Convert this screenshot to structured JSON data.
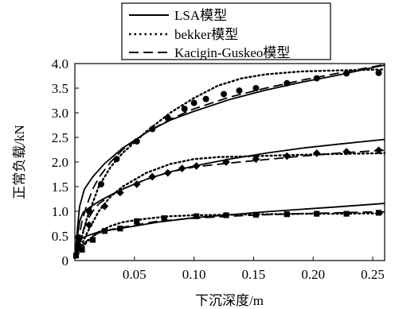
{
  "chart_data": {
    "type": "line",
    "xlabel": "下沉深度/m",
    "ylabel": "正常负载/kN",
    "xlim": [
      0,
      0.26
    ],
    "ylim": [
      0,
      4.0
    ],
    "xticks": [
      {
        "value": 0.05,
        "label": "0.05"
      },
      {
        "value": 0.1,
        "label": "0.10"
      },
      {
        "value": 0.15,
        "label": "0.15"
      },
      {
        "value": 0.2,
        "label": "0.20"
      },
      {
        "value": 0.25,
        "label": "0.25"
      }
    ],
    "yticks": [
      {
        "value": 0,
        "label": "0"
      },
      {
        "value": 0.5,
        "label": "0.5"
      },
      {
        "value": 1.0,
        "label": "1.0"
      },
      {
        "value": 1.5,
        "label": "1.5"
      },
      {
        "value": 2.0,
        "label": "2.0"
      },
      {
        "value": 2.5,
        "label": "2.5"
      },
      {
        "value": 3.0,
        "label": "3.0"
      },
      {
        "value": 3.5,
        "label": "3.5"
      },
      {
        "value": 4.0,
        "label": "4.0"
      }
    ],
    "grid": false,
    "legend": {
      "placement": "top",
      "entries": [
        {
          "label": "LSA模型",
          "style": "solid"
        },
        {
          "label": "bekker模型",
          "style": "dotted"
        },
        {
          "label": "Kacigin-Guskeo模型",
          "style": "dashed"
        }
      ]
    },
    "model_curves": [
      {
        "model": "LSA模型",
        "style": "solid",
        "group": "high",
        "points": [
          [
            0,
            0.05
          ],
          [
            0.002,
            0.6
          ],
          [
            0.004,
            1.1
          ],
          [
            0.008,
            1.45
          ],
          [
            0.015,
            1.7
          ],
          [
            0.025,
            1.97
          ],
          [
            0.04,
            2.28
          ],
          [
            0.06,
            2.6
          ],
          [
            0.08,
            2.85
          ],
          [
            0.1,
            3.03
          ],
          [
            0.13,
            3.27
          ],
          [
            0.16,
            3.46
          ],
          [
            0.19,
            3.62
          ],
          [
            0.22,
            3.76
          ],
          [
            0.26,
            3.97
          ]
        ]
      },
      {
        "model": "bekker模型",
        "style": "dotted",
        "group": "high",
        "points": [
          [
            0,
            0.05
          ],
          [
            0.005,
            0.4
          ],
          [
            0.01,
            0.85
          ],
          [
            0.02,
            1.5
          ],
          [
            0.03,
            1.9
          ],
          [
            0.04,
            2.18
          ],
          [
            0.05,
            2.4
          ],
          [
            0.06,
            2.62
          ],
          [
            0.08,
            3.0
          ],
          [
            0.1,
            3.3
          ],
          [
            0.12,
            3.55
          ],
          [
            0.14,
            3.7
          ],
          [
            0.16,
            3.78
          ],
          [
            0.19,
            3.84
          ],
          [
            0.22,
            3.86
          ],
          [
            0.26,
            3.88
          ]
        ]
      },
      {
        "model": "Kacigin-Guskeo模型",
        "style": "dashed",
        "group": "high",
        "points": [
          [
            0,
            0.05
          ],
          [
            0.003,
            0.4
          ],
          [
            0.006,
            0.8
          ],
          [
            0.01,
            1.12
          ],
          [
            0.015,
            1.45
          ],
          [
            0.02,
            1.68
          ],
          [
            0.03,
            2.0
          ],
          [
            0.04,
            2.25
          ],
          [
            0.06,
            2.6
          ],
          [
            0.08,
            2.87
          ],
          [
            0.1,
            3.08
          ],
          [
            0.13,
            3.32
          ],
          [
            0.16,
            3.5
          ],
          [
            0.19,
            3.66
          ],
          [
            0.22,
            3.8
          ],
          [
            0.26,
            3.98
          ]
        ]
      },
      {
        "model": "LSA模型",
        "style": "solid",
        "group": "mid",
        "points": [
          [
            0,
            0.05
          ],
          [
            0.002,
            0.45
          ],
          [
            0.004,
            0.8
          ],
          [
            0.007,
            0.98
          ],
          [
            0.012,
            1.07
          ],
          [
            0.02,
            1.2
          ],
          [
            0.03,
            1.33
          ],
          [
            0.04,
            1.45
          ],
          [
            0.06,
            1.65
          ],
          [
            0.08,
            1.8
          ],
          [
            0.1,
            1.92
          ],
          [
            0.13,
            2.06
          ],
          [
            0.16,
            2.18
          ],
          [
            0.19,
            2.28
          ],
          [
            0.22,
            2.36
          ],
          [
            0.26,
            2.46
          ]
        ]
      },
      {
        "model": "bekker模型",
        "style": "dotted",
        "group": "mid",
        "points": [
          [
            0,
            0.05
          ],
          [
            0.005,
            0.28
          ],
          [
            0.01,
            0.55
          ],
          [
            0.02,
            1.0
          ],
          [
            0.03,
            1.3
          ],
          [
            0.04,
            1.5
          ],
          [
            0.06,
            1.78
          ],
          [
            0.08,
            1.96
          ],
          [
            0.1,
            2.06
          ],
          [
            0.12,
            2.1
          ],
          [
            0.15,
            2.12
          ],
          [
            0.18,
            2.14
          ],
          [
            0.21,
            2.16
          ],
          [
            0.26,
            2.18
          ]
        ]
      },
      {
        "model": "Kacigin-Guskeo模型",
        "style": "dashed",
        "group": "mid",
        "points": [
          [
            0,
            0.05
          ],
          [
            0.003,
            0.3
          ],
          [
            0.006,
            0.55
          ],
          [
            0.01,
            0.8
          ],
          [
            0.015,
            1.0
          ],
          [
            0.02,
            1.15
          ],
          [
            0.03,
            1.32
          ],
          [
            0.04,
            1.45
          ],
          [
            0.06,
            1.65
          ],
          [
            0.08,
            1.8
          ],
          [
            0.1,
            1.9
          ],
          [
            0.13,
            1.98
          ],
          [
            0.16,
            2.05
          ],
          [
            0.19,
            2.12
          ],
          [
            0.22,
            2.18
          ],
          [
            0.26,
            2.24
          ]
        ]
      },
      {
        "model": "LSA模型",
        "style": "solid",
        "group": "low",
        "points": [
          [
            0,
            0.05
          ],
          [
            0.003,
            0.35
          ],
          [
            0.006,
            0.45
          ],
          [
            0.01,
            0.5
          ],
          [
            0.02,
            0.58
          ],
          [
            0.03,
            0.62
          ],
          [
            0.05,
            0.7
          ],
          [
            0.07,
            0.78
          ],
          [
            0.1,
            0.87
          ],
          [
            0.13,
            0.93
          ],
          [
            0.16,
            0.99
          ],
          [
            0.19,
            1.04
          ],
          [
            0.22,
            1.09
          ],
          [
            0.26,
            1.16
          ]
        ]
      },
      {
        "model": "bekker模型",
        "style": "dotted",
        "group": "low",
        "points": [
          [
            0,
            0.05
          ],
          [
            0.005,
            0.2
          ],
          [
            0.01,
            0.38
          ],
          [
            0.02,
            0.58
          ],
          [
            0.03,
            0.7
          ],
          [
            0.04,
            0.78
          ],
          [
            0.06,
            0.85
          ],
          [
            0.08,
            0.9
          ],
          [
            0.1,
            0.92
          ],
          [
            0.13,
            0.93
          ],
          [
            0.16,
            0.94
          ],
          [
            0.19,
            0.95
          ],
          [
            0.22,
            0.95
          ],
          [
            0.26,
            0.96
          ]
        ]
      },
      {
        "model": "Kacigin-Guskeo模型",
        "style": "dashed",
        "group": "low",
        "points": [
          [
            0,
            0.05
          ],
          [
            0.003,
            0.2
          ],
          [
            0.006,
            0.3
          ],
          [
            0.01,
            0.4
          ],
          [
            0.015,
            0.5
          ],
          [
            0.02,
            0.56
          ],
          [
            0.03,
            0.63
          ],
          [
            0.05,
            0.72
          ],
          [
            0.07,
            0.8
          ],
          [
            0.1,
            0.86
          ],
          [
            0.13,
            0.9
          ],
          [
            0.16,
            0.93
          ],
          [
            0.19,
            0.95
          ],
          [
            0.22,
            0.97
          ],
          [
            0.26,
            0.99
          ]
        ]
      }
    ],
    "measured_points": [
      {
        "marker": "circle",
        "points": [
          [
            0.003,
            0.47
          ],
          [
            0.012,
            1.0
          ],
          [
            0.022,
            1.55
          ],
          [
            0.035,
            2.06
          ],
          [
            0.052,
            2.42
          ],
          [
            0.065,
            2.67
          ],
          [
            0.078,
            2.9
          ],
          [
            0.092,
            3.08
          ],
          [
            0.1,
            3.2
          ],
          [
            0.11,
            3.28
          ],
          [
            0.125,
            3.38
          ],
          [
            0.138,
            3.45
          ],
          [
            0.152,
            3.5
          ],
          [
            0.178,
            3.6
          ],
          [
            0.203,
            3.7
          ],
          [
            0.228,
            3.8
          ],
          [
            0.255,
            3.81
          ]
        ]
      },
      {
        "marker": "diamond",
        "points": [
          [
            0.003,
            0.32
          ],
          [
            0.012,
            0.72
          ],
          [
            0.025,
            1.1
          ],
          [
            0.038,
            1.38
          ],
          [
            0.052,
            1.55
          ],
          [
            0.065,
            1.7
          ],
          [
            0.078,
            1.78
          ],
          [
            0.09,
            1.87
          ],
          [
            0.102,
            1.92
          ],
          [
            0.127,
            2.0
          ],
          [
            0.152,
            2.06
          ],
          [
            0.178,
            2.12
          ],
          [
            0.203,
            2.18
          ],
          [
            0.228,
            2.21
          ],
          [
            0.255,
            2.24
          ]
        ]
      },
      {
        "marker": "square",
        "points": [
          [
            0.001,
            0.1
          ],
          [
            0.006,
            0.22
          ],
          [
            0.015,
            0.42
          ],
          [
            0.025,
            0.6
          ],
          [
            0.038,
            0.65
          ],
          [
            0.052,
            0.8
          ],
          [
            0.075,
            0.86
          ],
          [
            0.102,
            0.9
          ],
          [
            0.127,
            0.92
          ],
          [
            0.152,
            0.93
          ],
          [
            0.178,
            0.94
          ],
          [
            0.203,
            0.95
          ],
          [
            0.228,
            0.95
          ],
          [
            0.255,
            0.97
          ]
        ]
      }
    ]
  }
}
